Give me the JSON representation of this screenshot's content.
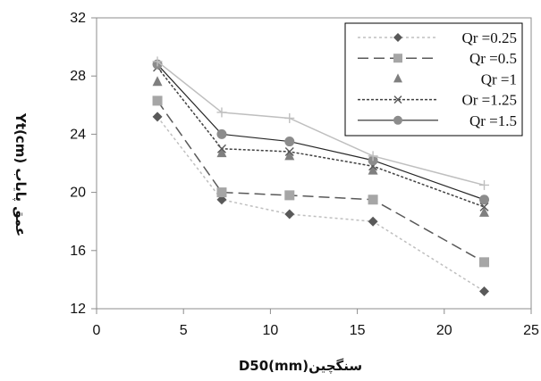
{
  "chart_data": {
    "type": "line",
    "title": "",
    "xlabel": "D50(mm)سنگچین",
    "ylabel": "Yt(cm) عمق پایاب",
    "xlim": [
      0,
      25
    ],
    "ylim": [
      12,
      32
    ],
    "xticks": [
      0,
      5,
      10,
      15,
      20,
      25
    ],
    "yticks": [
      12,
      16,
      20,
      24,
      28,
      32
    ],
    "grid": false,
    "legend_position": "top-right",
    "x": [
      3.5,
      7.2,
      11.1,
      15.9,
      22.3
    ],
    "series": [
      {
        "name": "Qr =0.25",
        "values": [
          25.2,
          19.5,
          18.5,
          18.0,
          13.2
        ],
        "color": "#bfbfbf",
        "marker_color": "#595959",
        "marker": "diamond",
        "dash": "3,3",
        "width": 1.5
      },
      {
        "name": "Qr =0.5",
        "values": [
          26.3,
          20.0,
          19.8,
          19.5,
          15.2
        ],
        "color": "#595959",
        "marker_color": "#a6a6a6",
        "marker": "square",
        "dash": "12,6",
        "width": 1.5
      },
      {
        "name": "Qr =1",
        "values": [
          27.6,
          22.7,
          22.5,
          21.5,
          18.6
        ],
        "color": "#7f7f7f",
        "marker_color": "#7f7f7f",
        "marker": "triangle",
        "dash": "none",
        "width": 0,
        "line": false
      },
      {
        "name": "Or =1.25",
        "values": [
          28.6,
          23.0,
          22.8,
          21.8,
          19.0
        ],
        "color": "#404040",
        "marker_color": "#595959",
        "marker": "x",
        "dash": "3,2",
        "width": 1.5
      },
      {
        "name": "Qr =1.5",
        "values": [
          28.8,
          24.0,
          23.5,
          22.2,
          19.5
        ],
        "color": "#262626",
        "marker_color": "#8c8c8c",
        "marker": "circle",
        "dash": "none",
        "width": 1.2
      },
      {
        "name": "",
        "values": [
          29.0,
          25.5,
          25.1,
          22.5,
          20.5
        ],
        "color": "#bfbfbf",
        "marker_color": "#bfbfbf",
        "marker": "plus",
        "dash": "none",
        "width": 1.5,
        "in_legend": false
      }
    ]
  }
}
